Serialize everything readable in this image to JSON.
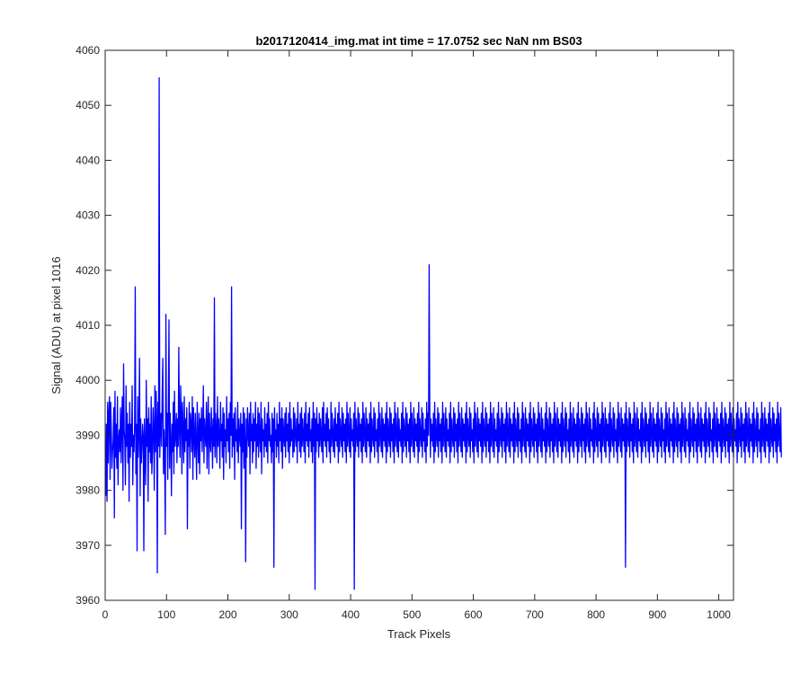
{
  "chart_data": {
    "type": "line",
    "title": "b2017120414_img.mat int time = 17.0752 sec  NaN nm BS03",
    "xlabel": "Track Pixels",
    "ylabel": "Signal (ADU) at pixel 1016",
    "xlim": [
      0,
      1024
    ],
    "ylim": [
      3960,
      4060
    ],
    "xticks": [
      0,
      100,
      200,
      300,
      400,
      500,
      600,
      700,
      800,
      900,
      1000
    ],
    "yticks": [
      3960,
      3970,
      3980,
      3990,
      4000,
      4010,
      4020,
      4030,
      4040,
      4050,
      4060
    ],
    "grid": false,
    "series": [
      {
        "color": "#0000ff",
        "x_start": 1,
        "x_step": 1,
        "values": [
          3979,
          3992,
          3978,
          3996,
          3985,
          3994,
          3997,
          3982,
          3996,
          3991,
          3984,
          3987,
          3989,
          3995,
          3975,
          3998,
          3986,
          3992,
          3984,
          3997,
          3981,
          3989,
          3991,
          3987,
          3995,
          3985,
          3993,
          3997,
          3980,
          4003,
          3991,
          3989,
          3981,
          3999,
          3988,
          3994,
          3985,
          3992,
          3978,
          3996,
          3986,
          3992,
          3988,
          3999,
          3981,
          3990,
          3987,
          3992,
          4017,
          3983,
          3992,
          3969,
          3997,
          3986,
          3991,
          4004,
          3979,
          3993,
          3985,
          3988,
          3992,
          3990,
          3969,
          3993,
          3987,
          3981,
          4000,
          3988,
          3993,
          3978,
          3995,
          3987,
          3992,
          3985,
          3997,
          3983,
          3987,
          3995,
          3991,
          3980,
          3999,
          3987,
          3998,
          3993,
          3965,
          3996,
          3988,
          4055,
          3986,
          3991,
          3994,
          3988,
          3998,
          4004,
          3983,
          3991,
          3986,
          3972,
          4012,
          3988,
          3994,
          3982,
          3996,
          4011,
          3984,
          3994,
          3989,
          3979,
          3992,
          3987,
          3996,
          3983,
          3998,
          3988,
          3990,
          3994,
          3985,
          3993,
          3988,
          4006,
          3991,
          3986,
          3999,
          3994,
          3983,
          3996,
          3991,
          3985,
          3997,
          3987,
          3993,
          3989,
          3995,
          3973,
          3991,
          3988,
          3996,
          3984,
          3994,
          3992,
          3987,
          3997,
          3982,
          3995,
          3990,
          3986,
          3994,
          3988,
          3982,
          3996,
          3990,
          3985,
          3994,
          3983,
          3993,
          3989,
          3995,
          3987,
          3991,
          3999,
          3985,
          3993,
          3990,
          3988,
          3996,
          3984,
          3992,
          3997,
          3983,
          3994,
          3989,
          3987,
          3995,
          3991,
          3984,
          3993,
          3988,
          4015,
          3986,
          3994,
          3991,
          3985,
          3997,
          3988,
          3993,
          3990,
          3984,
          3996,
          3989,
          3992,
          3986,
          3995,
          3982,
          3994,
          3988,
          3991,
          3985,
          3997,
          3989,
          3993,
          3987,
          3994,
          3984,
          3996,
          3990,
          4017,
          3986,
          3993,
          3988,
          3994,
          3982,
          3995,
          3989,
          3991,
          3987,
          3996,
          3985,
          3993,
          3990,
          3988,
          3994,
          3973,
          3992,
          3987,
          3995,
          3984,
          3994,
          3989,
          3967,
          3993,
          3986,
          3995,
          3990,
          3988,
          3994,
          3983,
          3996,
          3989,
          3992,
          3985,
          3994,
          3987,
          3993,
          3989,
          3996,
          3984,
          3992,
          3988,
          3995,
          3986,
          3994,
          3990,
          3987,
          3996,
          3983,
          3993,
          3989,
          3991,
          3986,
          3995,
          3988,
          3992,
          3987,
          3994,
          3985,
          3996,
          3989,
          3993,
          3988,
          3990,
          3985,
          3994,
          3987,
          3993,
          3966,
          3995,
          3989,
          3991,
          3986,
          3994,
          3988,
          3992,
          3985,
          3996,
          3989,
          3993,
          3987,
          3995,
          3984,
          3993,
          3990,
          3988,
          3994,
          3986,
          3995,
          3989,
          3992,
          3987,
          3994,
          3985,
          3996,
          3988,
          3993,
          3989,
          3991,
          3986,
          3995,
          3987,
          3994,
          3990,
          3988,
          3993,
          3985,
          3996,
          3989,
          3992,
          3987,
          3994,
          3986,
          3995,
          3988,
          3993,
          3990,
          3987,
          3994,
          3985,
          3996,
          3989,
          3992,
          3988,
          3994,
          3986,
          3995,
          3989,
          3991,
          3987,
          3993,
          3985,
          3996,
          3988,
          3994,
          3962,
          3993,
          3987,
          3995,
          3989,
          3992,
          3986,
          3994,
          3988,
          3993,
          3990,
          3987,
          3995,
          3985,
          3996,
          3989,
          3992,
          3988,
          3994,
          3986,
          3995,
          3989,
          3993,
          3987,
          3991,
          3985,
          3996,
          3988,
          3994,
          3990,
          3987,
          3993,
          3986,
          3995,
          3989,
          3992,
          3988,
          3994,
          3985,
          3996,
          3987,
          3993,
          3990,
          3988,
          3995,
          3986,
          3994,
          3989,
          3992,
          3987,
          3993,
          3985,
          3996,
          3988,
          3994,
          3990,
          3987,
          3995,
          3986,
          3993,
          3989,
          3991,
          3988,
          3994,
          3962,
          3996,
          3987,
          3993,
          3990,
          3988,
          3995,
          3986,
          3994,
          3989,
          3992,
          3987,
          3993,
          3985,
          3996,
          3988,
          3994,
          3990,
          3987,
          3995,
          3986,
          3993,
          3989,
          3992,
          3988,
          3994,
          3985,
          3996,
          3987,
          3993,
          3990,
          3988,
          3995,
          3986,
          3994,
          3989,
          3991,
          3987,
          3993,
          3985,
          3996,
          3988,
          3994,
          3990,
          3987,
          3995,
          3986,
          3993,
          3989,
          3992,
          3988,
          3994,
          3985,
          3996,
          3987,
          3993,
          3990,
          3988,
          3995,
          3986,
          3994,
          3989,
          3992,
          3987,
          3993,
          3985,
          3996,
          3988,
          3994,
          3990,
          3987,
          3995,
          3986,
          3993,
          3989,
          3991,
          3988,
          3994,
          3985,
          3996,
          3987,
          3993,
          3990,
          3988,
          3995,
          3986,
          3994,
          3989,
          3992,
          3987,
          3993,
          3985,
          3996,
          3988,
          3994,
          3990,
          3987,
          3995,
          3986,
          3993,
          3989,
          3992,
          3988,
          3994,
          3985,
          3996,
          3987,
          3993,
          3990,
          3988,
          3995,
          3986,
          3994,
          3989,
          3991,
          3987,
          3993,
          3985,
          3996,
          3988,
          3994,
          3990,
          4021,
          3995,
          3986,
          3993,
          3989,
          3992,
          3988,
          3994,
          3985,
          3996,
          3987,
          3993,
          3990,
          3988,
          3995,
          3986,
          3994,
          3989,
          3992,
          3987,
          3993,
          3985,
          3996,
          3988,
          3994,
          3990,
          3987,
          3995,
          3986,
          3993,
          3989,
          3991,
          3988,
          3994,
          3985,
          3996,
          3987,
          3993,
          3990,
          3988,
          3995,
          3986,
          3994,
          3989,
          3992,
          3987,
          3993,
          3985,
          3996,
          3988,
          3994,
          3990,
          3987,
          3995,
          3986,
          3993,
          3989,
          3992,
          3988,
          3994,
          3985,
          3996,
          3987,
          3993,
          3990,
          3988,
          3995,
          3986,
          3994,
          3989,
          3991,
          3987,
          3993,
          3985,
          3996,
          3988,
          3994,
          3990,
          3987,
          3995,
          3986,
          3993,
          3989,
          3992,
          3988,
          3994,
          3985,
          3996,
          3987,
          3993,
          3990,
          3988,
          3995,
          3986,
          3994,
          3989,
          3992,
          3987,
          3993,
          3985,
          3996,
          3988,
          3994,
          3990,
          3987,
          3995,
          3986,
          3993,
          3989,
          3991,
          3988,
          3994,
          3985,
          3996,
          3987,
          3993,
          3990,
          3988,
          3995,
          3986,
          3994,
          3989,
          3992,
          3987,
          3993,
          3985,
          3996,
          3988,
          3994,
          3990,
          3987,
          3995,
          3986,
          3993,
          3989,
          3992,
          3988,
          3994,
          3985,
          3996,
          3987,
          3993,
          3990,
          3988,
          3995,
          3986,
          3994,
          3989,
          3991,
          3987,
          3993,
          3985,
          3996,
          3988,
          3994,
          3990,
          3987,
          3995,
          3986,
          3993,
          3989,
          3992,
          3988,
          3994,
          3985,
          3996,
          3987,
          3993,
          3990,
          3988,
          3995,
          3986,
          3994,
          3989,
          3992,
          3987,
          3993,
          3985,
          3996,
          3988,
          3994,
          3990,
          3987,
          3995,
          3986,
          3993,
          3989,
          3991,
          3988,
          3994,
          3985,
          3996,
          3987,
          3993,
          3990,
          3988,
          3995,
          3986,
          3994,
          3989,
          3992,
          3987,
          3993,
          3985,
          3996,
          3988,
          3994,
          3990,
          3987,
          3995,
          3986,
          3993,
          3989,
          3992,
          3988,
          3994,
          3985,
          3996,
          3987,
          3993,
          3990,
          3988,
          3995,
          3986,
          3994,
          3989,
          3991,
          3987,
          3993,
          3985,
          3996,
          3988,
          3994,
          3990,
          3987,
          3995,
          3986,
          3993,
          3989,
          3992,
          3988,
          3994,
          3985,
          3996,
          3987,
          3993,
          3990,
          3988,
          3995,
          3986,
          3994,
          3989,
          3992,
          3987,
          3993,
          3985,
          3996,
          3988,
          3994,
          3990,
          3987,
          3995,
          3986,
          3993,
          3989,
          3991,
          3988,
          3994,
          3985,
          3996,
          3987,
          3993,
          3990,
          3988,
          3995,
          3986,
          3994,
          3989,
          3992,
          3987,
          3993,
          3985,
          3996,
          3988,
          3994,
          3990,
          3987,
          3995,
          3986,
          3993,
          3989,
          3992,
          3988,
          3994,
          3985,
          3996,
          3987,
          3993,
          3990,
          3988,
          3995,
          3986,
          3994,
          3989,
          3991,
          3987,
          3993,
          3985,
          3996,
          3988,
          3994,
          3990,
          3987,
          3995,
          3986,
          3993,
          3989,
          3992,
          3988,
          3994,
          3966,
          3996,
          3987,
          3993,
          3990,
          3988,
          3995,
          3986,
          3994,
          3989,
          3992,
          3987,
          3993,
          3985,
          3996,
          3988,
          3994,
          3990,
          3987,
          3995,
          3986,
          3993,
          3989,
          3991,
          3988,
          3994,
          3985,
          3996,
          3987,
          3993,
          3990,
          3988,
          3995,
          3986,
          3994,
          3989,
          3992,
          3987,
          3993,
          3985,
          3996,
          3988,
          3994,
          3990,
          3987,
          3995,
          3986,
          3993,
          3989,
          3992,
          3988,
          3994,
          3985,
          3996,
          3987,
          3993,
          3990,
          3988,
          3995,
          3986,
          3994,
          3989,
          3991,
          3987,
          3993,
          3985,
          3996,
          3988,
          3994,
          3990,
          3987,
          3995,
          3986,
          3993,
          3989,
          3992,
          3988,
          3994,
          3985,
          3996,
          3987,
          3993,
          3990,
          3988,
          3995,
          3986,
          3994,
          3989,
          3992,
          3987,
          3993,
          3985,
          3996,
          3988,
          3994,
          3990,
          3987,
          3995,
          3986,
          3993,
          3989,
          3991,
          3988,
          3994,
          3985,
          3996,
          3987,
          3993,
          3990,
          3988,
          3995,
          3986,
          3994,
          3989,
          3992,
          3987,
          3993,
          3985,
          3996,
          3988,
          3994,
          3990,
          3987,
          3995,
          3986,
          3993,
          3989,
          3992,
          3988,
          3994,
          3985,
          3996,
          3987,
          3993,
          3990,
          3988,
          3995,
          3986,
          3994,
          3989,
          3991,
          3987,
          3993,
          3985,
          3996,
          3988,
          3994,
          3990,
          3987,
          3995,
          3986,
          3993,
          3989,
          3992,
          3988,
          3994,
          3985,
          3996,
          3987,
          3993,
          3990,
          3988,
          3995,
          3986,
          3994,
          3989,
          3992,
          3987,
          3993,
          3985,
          3996,
          3988,
          3994,
          3990,
          3987,
          3995,
          3986,
          3993,
          3989,
          3991,
          3988,
          3994,
          3985,
          3996,
          3987,
          3993,
          3990,
          3988,
          3995,
          3986,
          3994,
          3989,
          3992,
          3987,
          3993,
          3985,
          3996,
          3988,
          3994,
          3990,
          3987,
          3995,
          3986,
          3993,
          3989,
          3992,
          3988,
          3994,
          3985,
          3996,
          3987,
          3993,
          3990,
          3988,
          3995,
          3986,
          3994,
          3989,
          3991,
          3987,
          3993,
          3985,
          3996,
          3988,
          3994,
          3990,
          3987,
          3995,
          3986,
          3993,
          3989,
          3992,
          3988,
          3994,
          3985,
          3996,
          3987,
          3993,
          3990,
          3988,
          3995,
          3986,
          3994,
          3989,
          3992,
          3987,
          3993,
          3985,
          3996,
          3988,
          3994,
          3990,
          3987,
          3995,
          3986
        ]
      }
    ]
  }
}
